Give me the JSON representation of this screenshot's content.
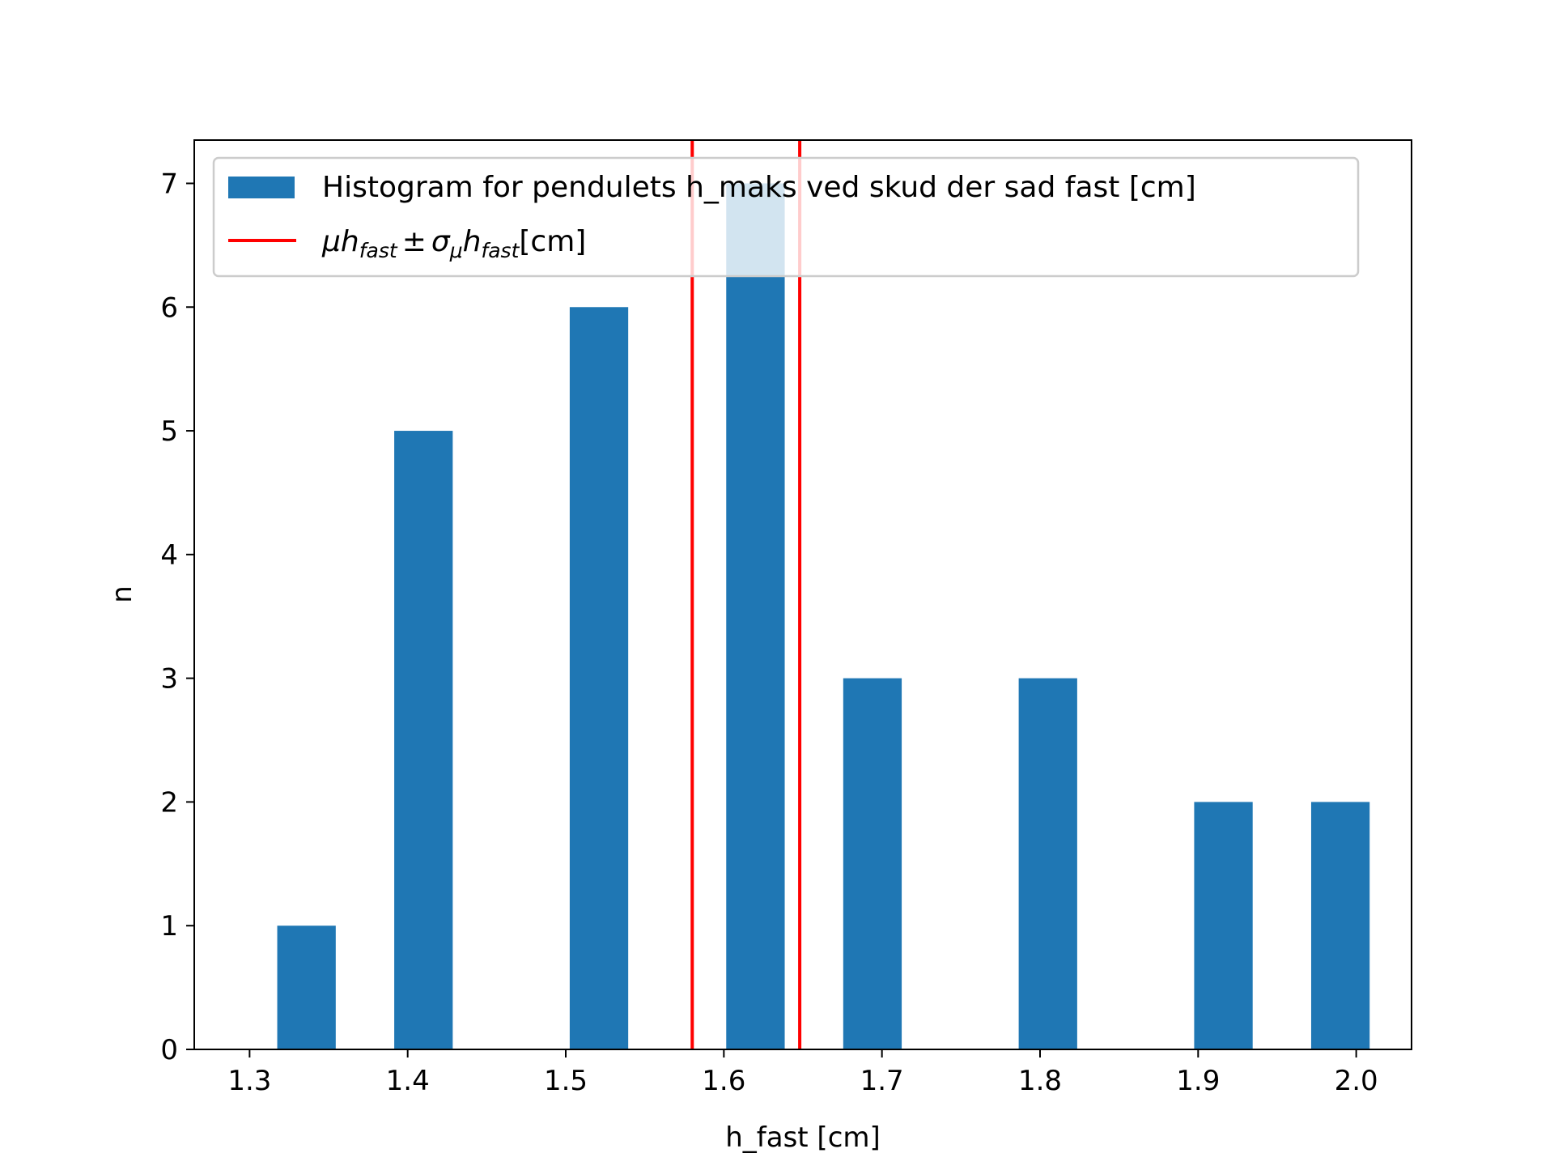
{
  "chart_data": {
    "type": "bar",
    "title": "",
    "xlabel": "h_fast [cm]",
    "ylabel": "n",
    "x": [
      1.336,
      1.41,
      1.521,
      1.62,
      1.694,
      1.805,
      1.916,
      1.99
    ],
    "values": [
      1,
      5,
      6,
      7,
      3,
      3,
      2,
      2
    ],
    "bar_width": 0.037,
    "xlim": [
      1.265,
      2.035
    ],
    "ylim": [
      0,
      7.35
    ],
    "xticks": [
      1.3,
      1.4,
      1.5,
      1.6,
      1.7,
      1.8,
      1.9,
      2.0
    ],
    "xtick_labels": [
      "1.3",
      "1.4",
      "1.5",
      "1.6",
      "1.7",
      "1.8",
      "1.9",
      "2.0"
    ],
    "yticks": [
      0,
      1,
      2,
      3,
      4,
      5,
      6,
      7
    ],
    "ytick_labels": [
      "0",
      "1",
      "2",
      "3",
      "4",
      "5",
      "6",
      "7"
    ],
    "vlines": [
      1.58,
      1.648
    ],
    "bar_color": "#1f77b4",
    "line_color": "#ff0000",
    "grid": false,
    "legend_position": "top-left",
    "legend": [
      {
        "label": "Histogram for pendulets h_maks ved skud der sad fast [cm]",
        "kind": "patch"
      },
      {
        "label": "μh_fast ± σ_μ h_fast[cm]",
        "kind": "line"
      }
    ],
    "legend_math": {
      "mu": "μ",
      "h": "h",
      "sub": "fast",
      "pm": "±",
      "sigma": "σ",
      "sigma_sub": "μ",
      "unit": "[cm]"
    }
  }
}
